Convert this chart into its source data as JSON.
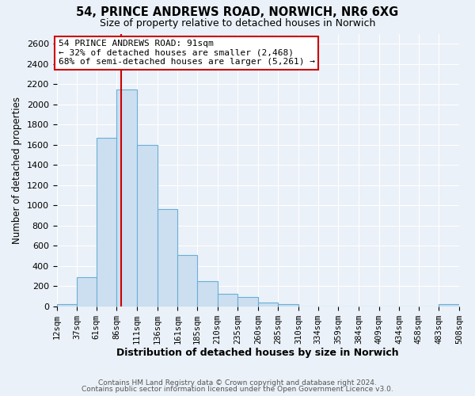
{
  "title": "54, PRINCE ANDREWS ROAD, NORWICH, NR6 6XG",
  "subtitle": "Size of property relative to detached houses in Norwich",
  "xlabel": "Distribution of detached houses by size in Norwich",
  "ylabel": "Number of detached properties",
  "bar_color": "#ccdff0",
  "bar_edge_color": "#6aafd6",
  "bg_color": "#eaf1f8",
  "plot_bg_color": "#eaf1f8",
  "grid_color": "#ffffff",
  "annotation_box_color": "#ffffff",
  "annotation_box_edge": "#cc0000",
  "vline_color": "#cc0000",
  "vline_x": 91,
  "bins": [
    12,
    37,
    61,
    86,
    111,
    136,
    161,
    185,
    210,
    235,
    260,
    285,
    310,
    334,
    359,
    384,
    409,
    434,
    458,
    483,
    508
  ],
  "bin_labels": [
    "12sqm",
    "37sqm",
    "61sqm",
    "86sqm",
    "111sqm",
    "136sqm",
    "161sqm",
    "185sqm",
    "210sqm",
    "235sqm",
    "260sqm",
    "285sqm",
    "310sqm",
    "334sqm",
    "359sqm",
    "384sqm",
    "409sqm",
    "434sqm",
    "458sqm",
    "483sqm",
    "508sqm"
  ],
  "counts": [
    20,
    290,
    1670,
    2150,
    1600,
    960,
    505,
    250,
    120,
    95,
    35,
    20,
    0,
    0,
    0,
    0,
    0,
    0,
    0,
    20
  ],
  "ylim": [
    0,
    2700
  ],
  "yticks": [
    0,
    200,
    400,
    600,
    800,
    1000,
    1200,
    1400,
    1600,
    1800,
    2000,
    2200,
    2400,
    2600
  ],
  "annotation_line1": "54 PRINCE ANDREWS ROAD: 91sqm",
  "annotation_line2": "← 32% of detached houses are smaller (2,468)",
  "annotation_line3": "68% of semi-detached houses are larger (5,261) →",
  "footer1": "Contains HM Land Registry data © Crown copyright and database right 2024.",
  "footer2": "Contains public sector information licensed under the Open Government Licence v3.0."
}
